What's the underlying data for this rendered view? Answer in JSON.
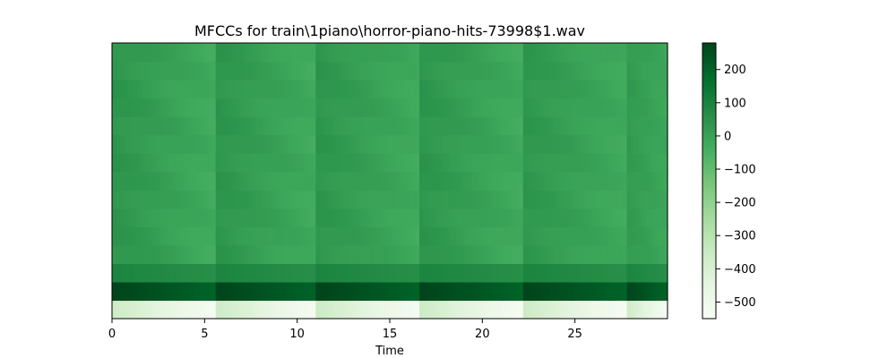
{
  "chart_data": {
    "type": "heatmap",
    "title": "MFCCs for train\\1piano\\horror-piano-hits-73998$1.wav",
    "xlabel": "Time",
    "ylabel": "",
    "xlim": [
      0,
      30
    ],
    "x_ticks": [
      "0",
      "5",
      "10",
      "15",
      "20",
      "25"
    ],
    "x_tick_values": [
      0,
      5,
      10,
      15,
      20,
      25
    ],
    "n_coefficients": 15,
    "hit_start_times": [
      0,
      5.55,
      11.1,
      16.65,
      22.2,
      27.75
    ],
    "colormap": "Greens",
    "colorbar": {
      "vmin": -550,
      "vmax": 280,
      "ticks": [
        "200",
        "100",
        "0",
        "−100",
        "−200",
        "−300",
        "−400",
        "−500"
      ],
      "tick_values": [
        200,
        100,
        0,
        -100,
        -200,
        -300,
        -400,
        -500
      ]
    },
    "coefficient_ranges_per_hit": {
      "c0": {
        "start": -360,
        "end": -540
      },
      "c1": {
        "start": 280,
        "end": 200
      },
      "c2": {
        "start": 95,
        "end": 60
      },
      "c3_to_c14": {
        "start": 40,
        "end": -30
      }
    },
    "hit_variation": [
      1.0,
      1.0,
      0.92,
      0.97,
      0.85,
      0.6
    ]
  }
}
